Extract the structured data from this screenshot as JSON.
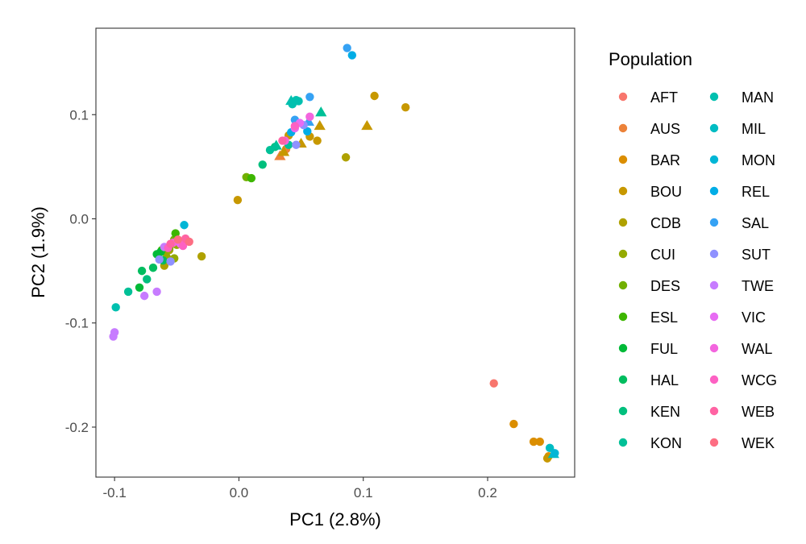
{
  "chart_data": {
    "type": "scatter",
    "xlabel": "PC1 (2.8%)",
    "ylabel": "PC2 (1.9%)",
    "xlim": [
      -0.115,
      0.27
    ],
    "ylim": [
      -0.248,
      0.183
    ],
    "x_ticks": [
      -0.1,
      0.0,
      0.1,
      0.2
    ],
    "x_tick_labels": [
      "-0.1",
      "0.0",
      "0.1",
      "0.2"
    ],
    "y_ticks": [
      -0.2,
      -0.1,
      0.0,
      0.1
    ],
    "y_tick_labels": [
      "-0.2",
      "-0.1",
      "0.0",
      "0.1"
    ],
    "grid": false,
    "legend_title": "Population",
    "legend_placement": "right",
    "series": [
      {
        "name": "AFT",
        "color": "#F8766D",
        "points": [
          [
            0.205,
            -0.158,
            "circle"
          ]
        ]
      },
      {
        "name": "AUS",
        "color": "#EC8239",
        "points": [
          [
            0.033,
            0.06,
            "triangle"
          ],
          [
            0.038,
            0.067,
            "circle"
          ]
        ]
      },
      {
        "name": "BAR",
        "color": "#DB8E00",
        "points": [
          [
            0.221,
            -0.197,
            "circle"
          ],
          [
            0.237,
            -0.214,
            "circle"
          ],
          [
            0.242,
            -0.214,
            "circle"
          ],
          [
            0.249,
            -0.228,
            "circle"
          ]
        ]
      },
      {
        "name": "BOU",
        "color": "#C79800",
        "points": [
          [
            -0.001,
            0.018,
            "circle"
          ],
          [
            0.109,
            0.118,
            "circle"
          ],
          [
            0.134,
            0.107,
            "circle"
          ],
          [
            0.036,
            0.064,
            "triangle"
          ],
          [
            0.103,
            0.089,
            "triangle"
          ],
          [
            0.065,
            0.089,
            "triangle"
          ],
          [
            0.05,
            0.072,
            "triangle"
          ],
          [
            0.057,
            0.079,
            "circle"
          ],
          [
            0.063,
            0.075,
            "circle"
          ],
          [
            0.04,
            0.08,
            "circle"
          ],
          [
            0.248,
            -0.23,
            "circle"
          ]
        ]
      },
      {
        "name": "CDB",
        "color": "#AFA100",
        "points": [
          [
            0.086,
            0.059,
            "circle"
          ],
          [
            -0.03,
            -0.036,
            "circle"
          ],
          [
            -0.06,
            -0.045,
            "circle"
          ],
          [
            -0.056,
            -0.03,
            "circle"
          ]
        ]
      },
      {
        "name": "CUI",
        "color": "#94AA00",
        "points": [
          [
            -0.052,
            -0.038,
            "circle"
          ],
          [
            -0.058,
            -0.035,
            "triangle"
          ],
          [
            -0.05,
            -0.025,
            "circle"
          ]
        ]
      },
      {
        "name": "DES",
        "color": "#72B000",
        "points": [
          [
            -0.052,
            -0.02,
            "circle"
          ],
          [
            -0.056,
            -0.028,
            "circle"
          ],
          [
            0.006,
            0.04,
            "circle"
          ]
        ]
      },
      {
        "name": "ESL",
        "color": "#3DB600",
        "points": [
          [
            -0.051,
            -0.014,
            "circle"
          ],
          [
            -0.062,
            -0.03,
            "circle"
          ],
          [
            0.01,
            0.039,
            "circle"
          ]
        ]
      },
      {
        "name": "FUL",
        "color": "#00BA38",
        "points": [
          [
            -0.063,
            -0.032,
            "circle"
          ],
          [
            -0.066,
            -0.034,
            "circle"
          ],
          [
            -0.08,
            -0.066,
            "circle"
          ]
        ]
      },
      {
        "name": "HAL",
        "color": "#00BD5F",
        "points": [
          [
            -0.078,
            -0.05,
            "circle"
          ],
          [
            -0.069,
            -0.047,
            "circle"
          ],
          [
            -0.061,
            -0.04,
            "circle"
          ]
        ]
      },
      {
        "name": "KEN",
        "color": "#00BF7D",
        "points": [
          [
            -0.074,
            -0.058,
            "circle"
          ],
          [
            0.019,
            0.052,
            "circle"
          ],
          [
            0.029,
            0.069,
            "circle"
          ]
        ]
      },
      {
        "name": "KON",
        "color": "#00C097",
        "points": [
          [
            -0.089,
            -0.07,
            "circle"
          ],
          [
            0.025,
            0.066,
            "circle"
          ],
          [
            0.03,
            0.07,
            "triangle"
          ],
          [
            0.066,
            0.102,
            "triangle"
          ],
          [
            0.04,
            0.071,
            "circle"
          ]
        ]
      },
      {
        "name": "MAN",
        "color": "#00C0AF",
        "points": [
          [
            -0.099,
            -0.085,
            "circle"
          ],
          [
            0.043,
            0.11,
            "circle"
          ],
          [
            0.046,
            0.114,
            "circle"
          ],
          [
            0.042,
            0.113,
            "triangle"
          ],
          [
            0.048,
            0.113,
            "circle"
          ]
        ]
      },
      {
        "name": "MIL",
        "color": "#00BCC3",
        "points": [
          [
            0.25,
            -0.22,
            "circle"
          ],
          [
            0.253,
            -0.226,
            "triangle"
          ]
        ]
      },
      {
        "name": "MON",
        "color": "#00B6D6",
        "points": [
          [
            -0.044,
            -0.006,
            "circle"
          ],
          [
            0.254,
            -0.225,
            "circle"
          ]
        ]
      },
      {
        "name": "REL",
        "color": "#00ADE6",
        "points": [
          [
            0.091,
            0.157,
            "circle"
          ],
          [
            0.055,
            0.084,
            "circle"
          ],
          [
            0.042,
            0.083,
            "circle"
          ]
        ]
      },
      {
        "name": "SAL",
        "color": "#35A2F4",
        "points": [
          [
            0.087,
            0.164,
            "circle"
          ],
          [
            0.057,
            0.117,
            "circle"
          ],
          [
            0.045,
            0.095,
            "circle"
          ],
          [
            0.056,
            0.093,
            "triangle"
          ]
        ]
      },
      {
        "name": "SUT",
        "color": "#8F91FF",
        "points": [
          [
            -0.064,
            -0.039,
            "circle"
          ],
          [
            -0.055,
            -0.041,
            "circle"
          ],
          [
            0.046,
            0.071,
            "circle"
          ],
          [
            0.052,
            0.09,
            "circle"
          ]
        ]
      },
      {
        "name": "TWE",
        "color": "#C77CFF",
        "points": [
          [
            -0.1,
            -0.109,
            "circle"
          ],
          [
            -0.101,
            -0.113,
            "circle"
          ],
          [
            -0.066,
            -0.07,
            "circle"
          ],
          [
            -0.076,
            -0.074,
            "circle"
          ],
          [
            -0.06,
            -0.027,
            "circle"
          ]
        ]
      },
      {
        "name": "VIC",
        "color": "#E76CF3",
        "points": [
          [
            -0.047,
            -0.024,
            "circle"
          ],
          [
            0.049,
            0.092,
            "circle"
          ],
          [
            0.045,
            0.087,
            "circle"
          ]
        ]
      },
      {
        "name": "WAL",
        "color": "#F365DE",
        "points": [
          [
            -0.053,
            -0.023,
            "circle"
          ],
          [
            0.057,
            0.098,
            "circle"
          ],
          [
            0.037,
            0.075,
            "circle"
          ]
        ]
      },
      {
        "name": "WCG",
        "color": "#FD61C3",
        "points": [
          [
            -0.045,
            -0.026,
            "circle"
          ],
          [
            -0.057,
            -0.028,
            "circle"
          ],
          [
            0.045,
            0.089,
            "circle"
          ]
        ]
      },
      {
        "name": "WEB",
        "color": "#FF63A3",
        "points": [
          [
            -0.043,
            -0.019,
            "circle"
          ],
          [
            -0.055,
            -0.024,
            "circle"
          ],
          [
            0.035,
            0.075,
            "circle"
          ]
        ]
      },
      {
        "name": "WEK",
        "color": "#FD6E83",
        "points": [
          [
            -0.04,
            -0.022,
            "circle"
          ],
          [
            -0.049,
            -0.02,
            "circle"
          ]
        ]
      }
    ]
  }
}
